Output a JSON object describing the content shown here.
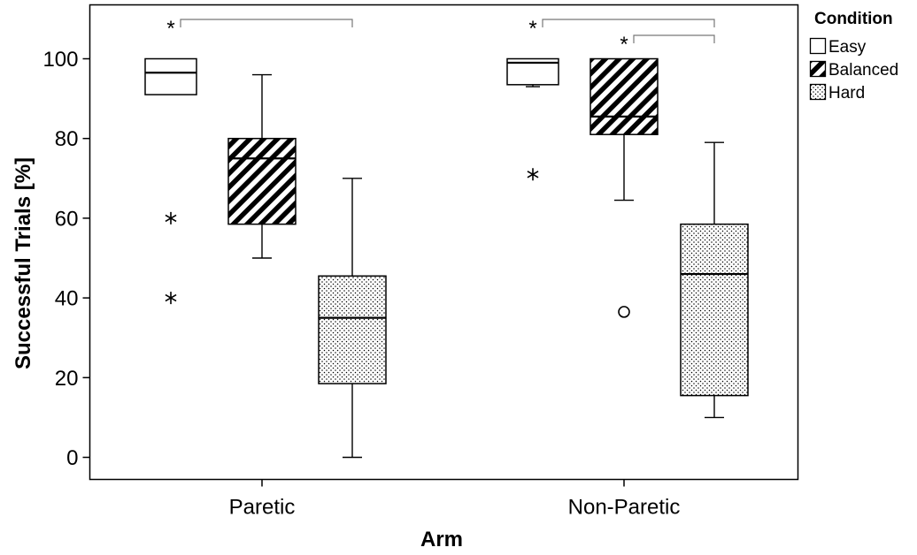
{
  "chart_data": {
    "type": "boxplot",
    "xlabel": "Arm",
    "ylabel": "Successful Trials [%]",
    "categories": [
      "Paretic",
      "Non-Paretic"
    ],
    "yticks": [
      0,
      20,
      40,
      60,
      80,
      100
    ],
    "yticks_text": [
      "0",
      "20",
      "40",
      "60",
      "80",
      "100"
    ],
    "ylim": [
      -6,
      112
    ],
    "grid": false,
    "legend": {
      "title": "Condition",
      "position": "right",
      "entries": [
        "Easy",
        "Balanced",
        "Hard"
      ]
    },
    "series": [
      {
        "name": "Easy",
        "fill": "none",
        "boxes": [
          {
            "category": "Paretic",
            "q1": 91,
            "median": 96.5,
            "q3": 100,
            "whisker_low": 91,
            "whisker_high": 100,
            "outliers": [
              {
                "value": 60,
                "marker": "star"
              },
              {
                "value": 40,
                "marker": "star"
              }
            ]
          },
          {
            "category": "Non-Paretic",
            "q1": 93.5,
            "median": 99,
            "q3": 100,
            "whisker_low": 93,
            "whisker_high": 100,
            "outliers": [
              {
                "value": 71,
                "marker": "star"
              }
            ]
          }
        ]
      },
      {
        "name": "Balanced",
        "fill": "hatch",
        "boxes": [
          {
            "category": "Paretic",
            "q1": 58.5,
            "median": 75,
            "q3": 80,
            "whisker_low": 50,
            "whisker_high": 96,
            "outliers": []
          },
          {
            "category": "Non-Paretic",
            "q1": 81,
            "median": 85.5,
            "q3": 100,
            "whisker_low": 64.5,
            "whisker_high": 100,
            "outliers": [
              {
                "value": 36.5,
                "marker": "circle"
              }
            ]
          }
        ]
      },
      {
        "name": "Hard",
        "fill": "dots",
        "boxes": [
          {
            "category": "Paretic",
            "q1": 18.5,
            "median": 35,
            "q3": 45.5,
            "whisker_low": 0,
            "whisker_high": 70,
            "outliers": []
          },
          {
            "category": "Non-Paretic",
            "q1": 15.5,
            "median": 46,
            "q3": 58.5,
            "whisker_low": 10,
            "whisker_high": 79,
            "outliers": []
          }
        ]
      }
    ],
    "significance": [
      {
        "category": "Paretic",
        "from": "Easy",
        "to": "Hard",
        "label": "*"
      },
      {
        "category": "Non-Paretic",
        "from": "Easy",
        "to": "Hard",
        "label": "*"
      },
      {
        "category": "Non-Paretic",
        "from": "Balanced",
        "to": "Hard",
        "label": "*"
      }
    ]
  }
}
